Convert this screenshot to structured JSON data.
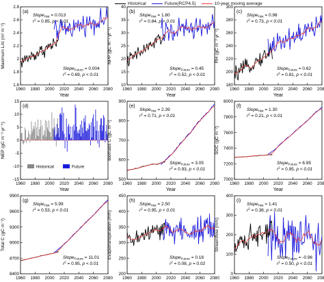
{
  "legend": {
    "items": [
      {
        "label": "Historical",
        "color": "#000000"
      },
      {
        "label": "Future(RCP4.5)",
        "color": "#1a1adb"
      },
      {
        "label": "10-year moving average",
        "color": "#e83a3a"
      }
    ]
  },
  "colors": {
    "historical": "#000000",
    "future": "#1a1adb",
    "moving_average": "#e83a3a",
    "nep_historical_bar": "#888888",
    "nep_future_bar": "#1a1adb"
  },
  "x_axis_label": "Year",
  "chart_data": [
    {
      "type": "line",
      "panel": "(a)",
      "ylabel": "Maximum LAI (m² m⁻²)",
      "ylim": [
        1.6,
        2.8
      ],
      "yticks": [
        1.6,
        1.8,
        2.0,
        2.2,
        2.4,
        2.6,
        2.8
      ],
      "xlim": [
        1960,
        2080
      ],
      "xticks": [
        1960,
        1980,
        2000,
        2020,
        2040,
        2060,
        2080
      ],
      "hist_start": 1960,
      "hist_end": 2012,
      "fut_start": 2006,
      "fut_end": 2080,
      "hist_trend": [
        1.95,
        2.26
      ],
      "fut_trend": [
        2.42,
        2.62
      ],
      "noise": [
        0.08,
        0.11
      ],
      "ann_hist": {
        "slope_label": "Slope",
        "slope_sub": "Hist",
        "slope_value": "0.013",
        "r2_label": "r",
        "r2_value": "= 0.85",
        "p_value": "p < 0.01",
        "pos": "top-left"
      },
      "ann_fut": {
        "slope_label": "Slope",
        "slope_sub": "Future",
        "slope_value": "0.004",
        "r2_label": "r",
        "r2_value": "= 0.69",
        "p_value": "p < 0.01",
        "pos": "bottom-right"
      }
    },
    {
      "type": "line",
      "panel": "(b)",
      "ylabel": "NPP (gC m⁻² yr⁻¹)",
      "ylim": [
        10,
        40
      ],
      "yticks": [
        10,
        15,
        20,
        25,
        30,
        35,
        40
      ],
      "xlim": [
        1960,
        2080
      ],
      "xticks": [
        1960,
        1980,
        2000,
        2020,
        2040,
        2060,
        2080
      ],
      "hist_start": 1960,
      "hist_end": 2012,
      "fut_start": 2006,
      "fut_end": 2080,
      "hist_trend": [
        19,
        29
      ],
      "fut_trend": [
        30,
        33
      ],
      "noise": [
        2.0,
        3.2
      ],
      "ann_hist": {
        "slope_label": "Slope",
        "slope_sub": "Hist",
        "slope_value": "1.80",
        "r2_label": "r",
        "r2_value": "= 0.84",
        "p_value": "p < 0.01",
        "pos": "top-left"
      },
      "ann_fut": {
        "slope_label": "Slope",
        "slope_sub": "Future",
        "slope_value": "0.45",
        "r2_label": "r",
        "r2_value": "= 0.52",
        "p_value": "p < 0.01",
        "pos": "bottom-right"
      }
    },
    {
      "type": "line",
      "panel": "(c)",
      "ylabel": "RH (gC m⁻² yr⁻¹)",
      "ylim": [
        180,
        300
      ],
      "yticks": [
        180,
        200,
        220,
        240,
        260,
        280,
        300
      ],
      "xlim": [
        1960,
        2080
      ],
      "xticks": [
        1960,
        1980,
        2000,
        2020,
        2040,
        2060,
        2080
      ],
      "hist_start": 1960,
      "hist_end": 2012,
      "fut_start": 2006,
      "fut_end": 2080,
      "hist_trend": [
        195,
        232
      ],
      "fut_trend": [
        238,
        272
      ],
      "noise": [
        8,
        14
      ],
      "ann_hist": {
        "slope_label": "Slope",
        "slope_sub": "Hist",
        "slope_value": "0.98",
        "r2_label": "r",
        "r2_value": "= 0.73",
        "p_value": "p < 0.01",
        "pos": "top-left"
      },
      "ann_fut": {
        "slope_label": "Slope",
        "slope_sub": "Future",
        "slope_value": "0.62",
        "r2_label": "r",
        "r2_value": "= 0.81",
        "p_value": "p < 0.01",
        "pos": "bottom-right"
      }
    },
    {
      "type": "bar",
      "panel": "(d)",
      "ylabel": "NEP (gC m⁻² yr⁻¹)",
      "ylim": [
        -15,
        15
      ],
      "yticks": [
        -15,
        -10,
        -5,
        0,
        5,
        10,
        15
      ],
      "xlim": [
        1960,
        2080
      ],
      "xticks": [
        1960,
        1980,
        2000,
        2020,
        2040,
        2060,
        2080
      ],
      "hist_start": 1960,
      "hist_end": 2012,
      "fut_start": 2006,
      "fut_end": 2080,
      "inset_legend": [
        {
          "label": "Historical",
          "color": "#888888"
        },
        {
          "label": "Future",
          "color": "#1a1adb"
        }
      ]
    },
    {
      "type": "line",
      "panel": "(e)",
      "ylabel": "Biomass C (gC m⁻²)",
      "ylim": [
        500,
        900
      ],
      "yticks": [
        500,
        600,
        700,
        800,
        900
      ],
      "xlim": [
        1960,
        2080
      ],
      "xticks": [
        1960,
        1980,
        2000,
        2020,
        2040,
        2060,
        2080
      ],
      "hist_start": 1960,
      "hist_end": 2012,
      "fut_start": 2006,
      "fut_end": 2080,
      "hist_trend": [
        545,
        590
      ],
      "fut_trend": [
        575,
        890
      ],
      "noise": [
        4,
        8
      ],
      "ann_hist": {
        "slope_label": "Slope",
        "slope_sub": "Hist",
        "slope_value": "2.39",
        "r2_label": "r",
        "r2_value": "= 0.71",
        "p_value": "p < 0.01",
        "pos": "top-left"
      },
      "ann_fut": {
        "slope_label": "Slope",
        "slope_sub": "Future",
        "slope_value": "3.05",
        "r2_label": "r",
        "r2_value": "= 0.93",
        "p_value": "p < 0.01",
        "pos": "bottom-right"
      }
    },
    {
      "type": "line",
      "panel": "(f)",
      "ylabel": "SOC (gC m⁻²)",
      "ylim": [
        7000,
        8000
      ],
      "yticks": [
        7000,
        7200,
        7400,
        7600,
        7800,
        8000
      ],
      "xlim": [
        1960,
        2080
      ],
      "xticks": [
        1960,
        1980,
        2000,
        2020,
        2040,
        2060,
        2080
      ],
      "hist_start": 1960,
      "hist_end": 2012,
      "fut_start": 2006,
      "fut_end": 2080,
      "hist_trend": [
        7280,
        7320
      ],
      "fut_trend": [
        7320,
        7930
      ],
      "noise": [
        5,
        8
      ],
      "ann_hist": {
        "slope_label": "Slope",
        "slope_sub": "Hist",
        "slope_value": "1.30",
        "r2_label": "r",
        "r2_value": "= 0.21",
        "p_value": "p < 0.01",
        "pos": "top-left"
      },
      "ann_fut": {
        "slope_label": "Slope",
        "slope_sub": "Future",
        "slope_value": "6.95",
        "r2_label": "r",
        "r2_value": "= 0.95",
        "p_value": "p < 0.01",
        "pos": "bottom-right"
      }
    },
    {
      "type": "line",
      "panel": "(g)",
      "ylabel": "Total C (gC m⁻²)",
      "ylim": [
        8400,
        9900
      ],
      "yticks": [
        8400,
        8700,
        9000,
        9300,
        9600,
        9900
      ],
      "xlim": [
        1960,
        2080
      ],
      "xticks": [
        1960,
        1980,
        2000,
        2020,
        2040,
        2060,
        2080
      ],
      "hist_start": 1960,
      "hist_end": 2012,
      "fut_start": 2006,
      "fut_end": 2080,
      "hist_trend": [
        8650,
        8820
      ],
      "fut_trend": [
        8800,
        9820
      ],
      "noise": [
        6,
        12
      ],
      "ann_hist": {
        "slope_label": "Slope",
        "slope_sub": "Hist",
        "slope_value": "5.99",
        "r2_label": "r",
        "r2_value": "= 0.53",
        "p_value": "p < 0.01",
        "pos": "top-left"
      },
      "ann_fut": {
        "slope_label": "Slope",
        "slope_sub": "Future",
        "slope_value": "11.01",
        "r2_label": "r",
        "r2_value": "= 0.95",
        "p_value": "p < 0.01",
        "pos": "bottom-right"
      }
    },
    {
      "type": "line",
      "panel": "(h)",
      "ylabel": "Evapotranspiration (mm)",
      "ylim": [
        200,
        450
      ],
      "yticks": [
        200,
        250,
        300,
        350,
        400,
        450
      ],
      "xlim": [
        1960,
        2080
      ],
      "xticks": [
        1960,
        1980,
        2000,
        2020,
        2040,
        2060,
        2080
      ],
      "hist_start": 1960,
      "hist_end": 2012,
      "fut_start": 2006,
      "fut_end": 2080,
      "hist_trend": [
        305,
        345
      ],
      "fut_trend": [
        335,
        345
      ],
      "noise": [
        22,
        35
      ],
      "ann_hist": {
        "slope_label": "Slope",
        "slope_sub": "Hist",
        "slope_value": "2.50",
        "r2_label": "r",
        "r2_value": "= 0.95",
        "p_value": "p < 0.01",
        "pos": "top-left"
      },
      "ann_fut": {
        "slope_label": "Slope",
        "slope_sub": "Future",
        "slope_value": "0.18",
        "r2_label": "r",
        "r2_value": "= 0.08",
        "p_value": "p = 0.02",
        "pos": "bottom-right"
      }
    },
    {
      "type": "line",
      "panel": "(i)",
      "ylabel": "Streamflow (mm)",
      "ylim": [
        0,
        400
      ],
      "yticks": [
        0,
        100,
        200,
        300,
        400
      ],
      "xlim": [
        1960,
        2080
      ],
      "xticks": [
        1960,
        1980,
        2000,
        2020,
        2040,
        2060,
        2080
      ],
      "hist_start": 1960,
      "hist_end": 2012,
      "fut_start": 2006,
      "fut_end": 2080,
      "hist_trend": [
        150,
        240
      ],
      "fut_trend": [
        220,
        170
      ],
      "noise": [
        45,
        90
      ],
      "ann_hist": {
        "slope_label": "Slope",
        "slope_sub": "Hist",
        "slope_value": "1.41",
        "r2_label": "r",
        "r2_value": "= 0.38",
        "p_value": "p < 0.01",
        "pos": "top-left"
      },
      "ann_fut": {
        "slope_label": "Slope",
        "slope_sub": "Future",
        "slope_value": "-0.96",
        "r2_label": "r",
        "r2_value": "= 0.50",
        "p_value": "p < 0.01",
        "pos": "bottom-right"
      }
    }
  ]
}
